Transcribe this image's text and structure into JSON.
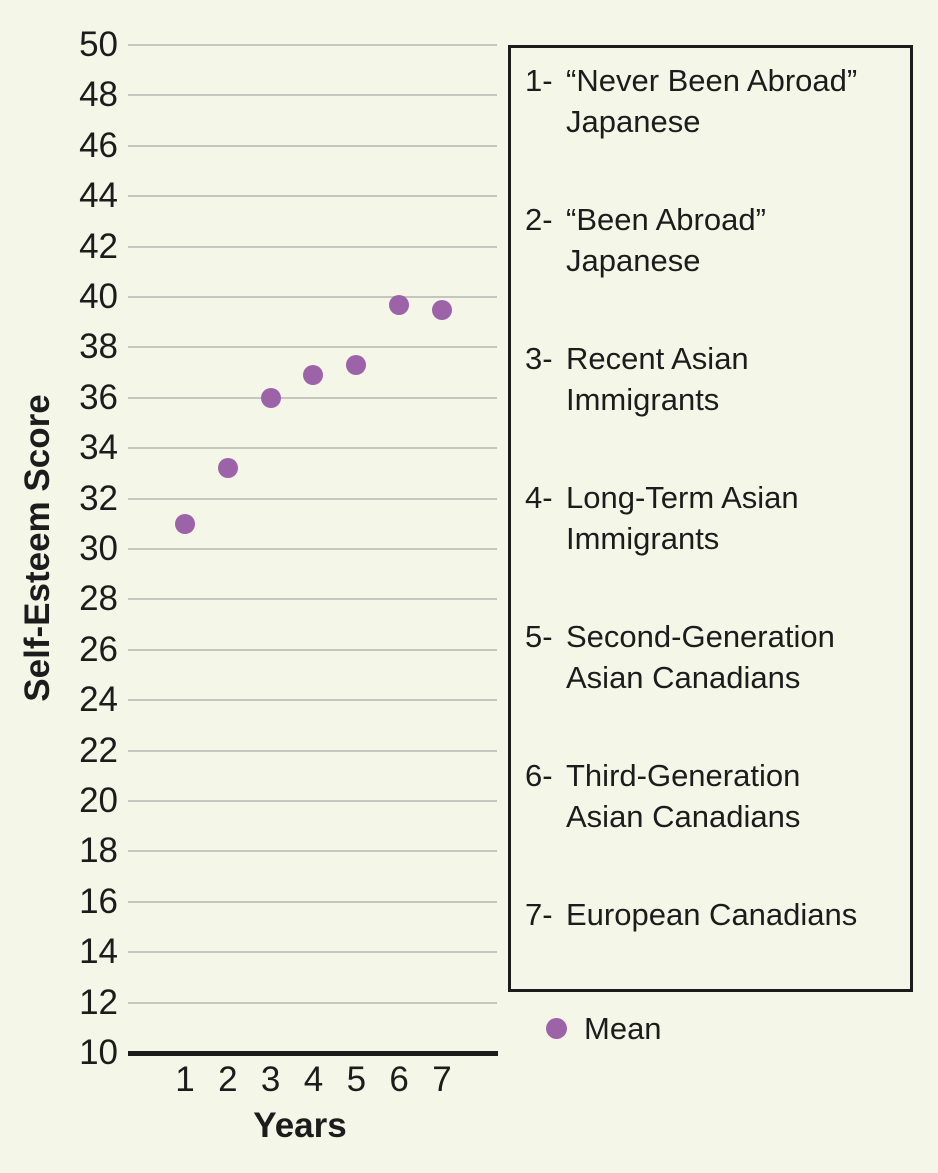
{
  "colors": {
    "background": "#f4f6e8",
    "point": "#9d63a9",
    "gridline": "#c4c6bf",
    "axis": "#1c1c1c",
    "text": "#1c1c1c",
    "legend_border": "#1c1c1c"
  },
  "chart_data": {
    "type": "scatter",
    "x": [
      1,
      2,
      3,
      4,
      5,
      6,
      7
    ],
    "values": [
      31.0,
      33.2,
      36.0,
      36.9,
      37.3,
      39.7,
      39.5
    ],
    "series_name": "Mean",
    "title": "",
    "xlabel": "Years",
    "ylabel": "Self-Esteem Score",
    "ylim": [
      10,
      50
    ],
    "ytick_step": 2,
    "xticks": [
      1,
      2,
      3,
      4,
      5,
      6,
      7
    ],
    "grid": "horizontal gridlines on",
    "legend_position": "right"
  },
  "legend": {
    "items": [
      {
        "number": "1-",
        "line1": "“Never Been Abroad”",
        "line2": "Japanese"
      },
      {
        "number": "2-",
        "line1": "“Been Abroad”",
        "line2": "Japanese"
      },
      {
        "number": "3-",
        "line1": "Recent Asian",
        "line2": "Immigrants"
      },
      {
        "number": "4-",
        "line1": "Long-Term Asian",
        "line2": "Immigrants"
      },
      {
        "number": "5-",
        "line1": "Second-Generation",
        "line2": "Asian Canadians"
      },
      {
        "number": "6-",
        "line1": "Third-Generation",
        "line2": "Asian Canadians"
      },
      {
        "number": "7-",
        "line1": "European Canadians",
        "line2": ""
      }
    ],
    "marker_label": "Mean"
  }
}
